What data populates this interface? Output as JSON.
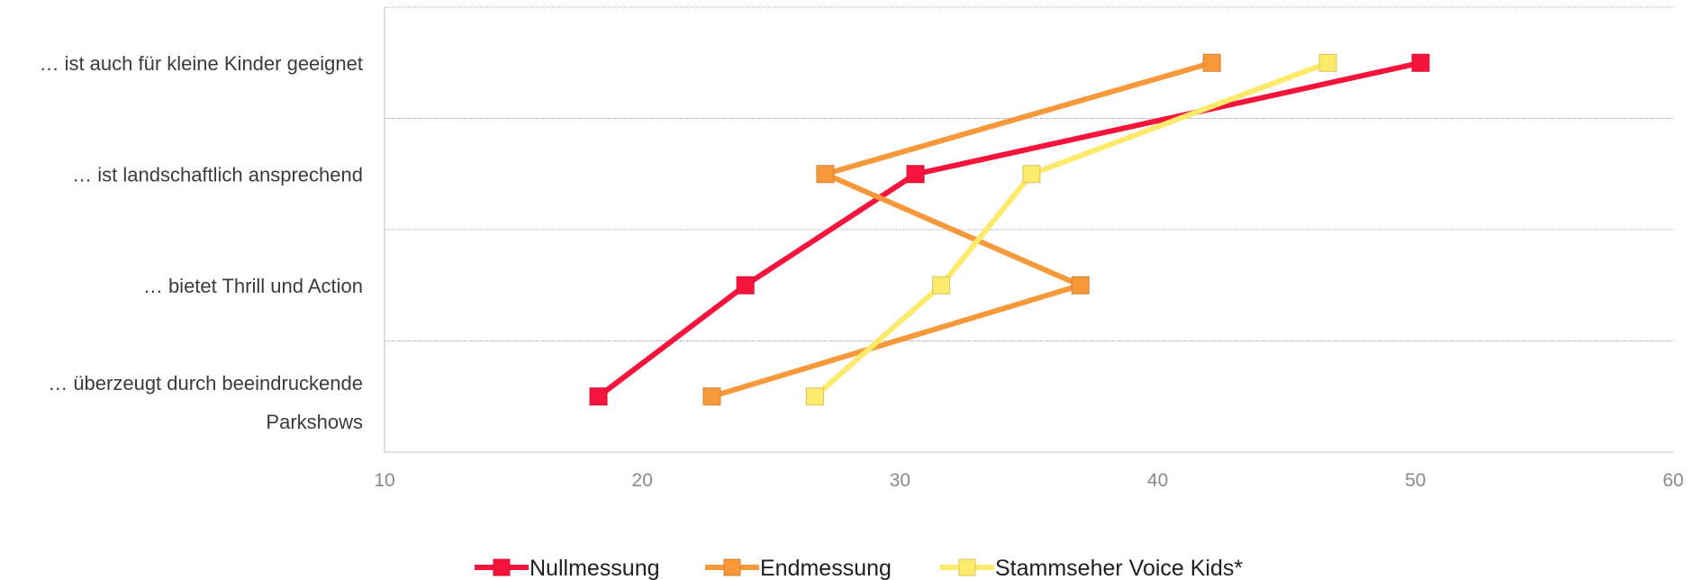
{
  "chart_data": {
    "type": "line",
    "orientation": "horizontal",
    "categories": [
      "… ist auch für kleine Kinder geeignet",
      "… ist landschaftlich ansprechend",
      "… bietet Thrill und Action",
      "… überzeugt durch beeindruckende Parkshows"
    ],
    "category_lines": [
      [
        "… ist auch für kleine Kinder geeignet"
      ],
      [
        "… ist landschaftlich ansprechend"
      ],
      [
        "… bietet Thrill und Action"
      ],
      [
        "… überzeugt durch beeindruckende",
        "Parkshows"
      ]
    ],
    "xlim": [
      10,
      60
    ],
    "xticks": [
      "10",
      "20",
      "30",
      "40",
      "50",
      "60"
    ],
    "xtick_values": [
      10,
      20,
      30,
      40,
      50,
      60
    ],
    "grid": true,
    "legend_position": "bottom",
    "series": [
      {
        "name": "Nullmessung",
        "color": "#f5143c",
        "values": [
          50.2,
          30.6,
          24.0,
          18.3
        ]
      },
      {
        "name": "Endmessung",
        "color": "#f7993a",
        "values": [
          42.1,
          27.1,
          37.0,
          22.7
        ]
      },
      {
        "name": "Stammseher Voice Kids*",
        "color": "#fde96a",
        "values": [
          46.6,
          35.1,
          31.6,
          26.7
        ]
      }
    ]
  }
}
